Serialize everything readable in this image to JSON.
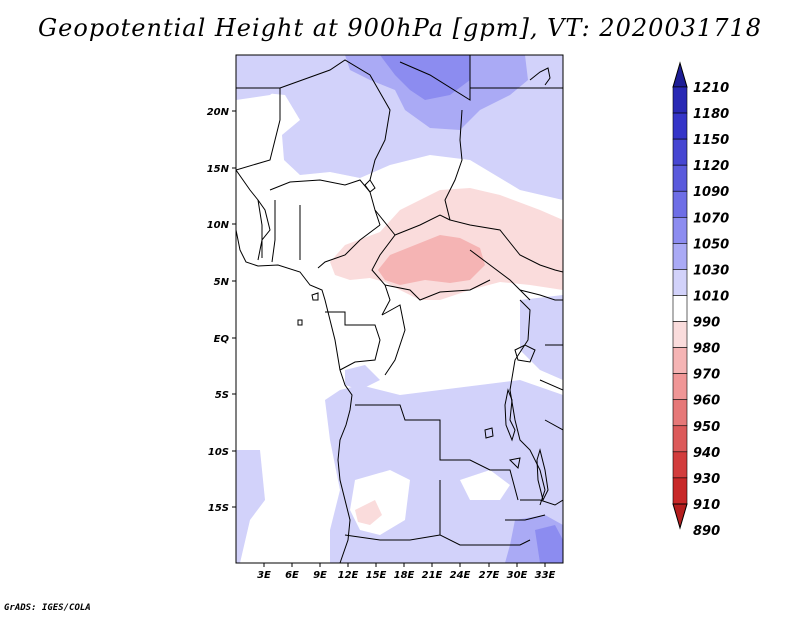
{
  "title": "Geopotential Height at 900hPa [gpm], VT: 2020031718",
  "footer": "GrADS: IGES/COLA",
  "map": {
    "lat_labels": [
      "20N",
      "15N",
      "10N",
      "5N",
      "EQ",
      "5S",
      "10S",
      "15S"
    ],
    "lon_labels": [
      "3E",
      "6E",
      "9E",
      "12E",
      "15E",
      "18E",
      "21E",
      "24E",
      "27E",
      "30E",
      "33E"
    ]
  },
  "colorbar": {
    "labels": [
      "1210",
      "1180",
      "1150",
      "1120",
      "1090",
      "1070",
      "1050",
      "1030",
      "1010",
      "990",
      "980",
      "970",
      "960",
      "950",
      "940",
      "930",
      "910",
      "890"
    ],
    "colors": [
      "#1e1e96",
      "#2828b4",
      "#3434c8",
      "#4646d2",
      "#5a5adc",
      "#6e6ee6",
      "#8c8cf0",
      "#aaaaf5",
      "#d2d2fa",
      "#ffffff",
      "#fadcdc",
      "#f5b4b4",
      "#f09696",
      "#e67878",
      "#dc5a5a",
      "#d23c3c",
      "#c82828",
      "#b41e1e"
    ]
  }
}
